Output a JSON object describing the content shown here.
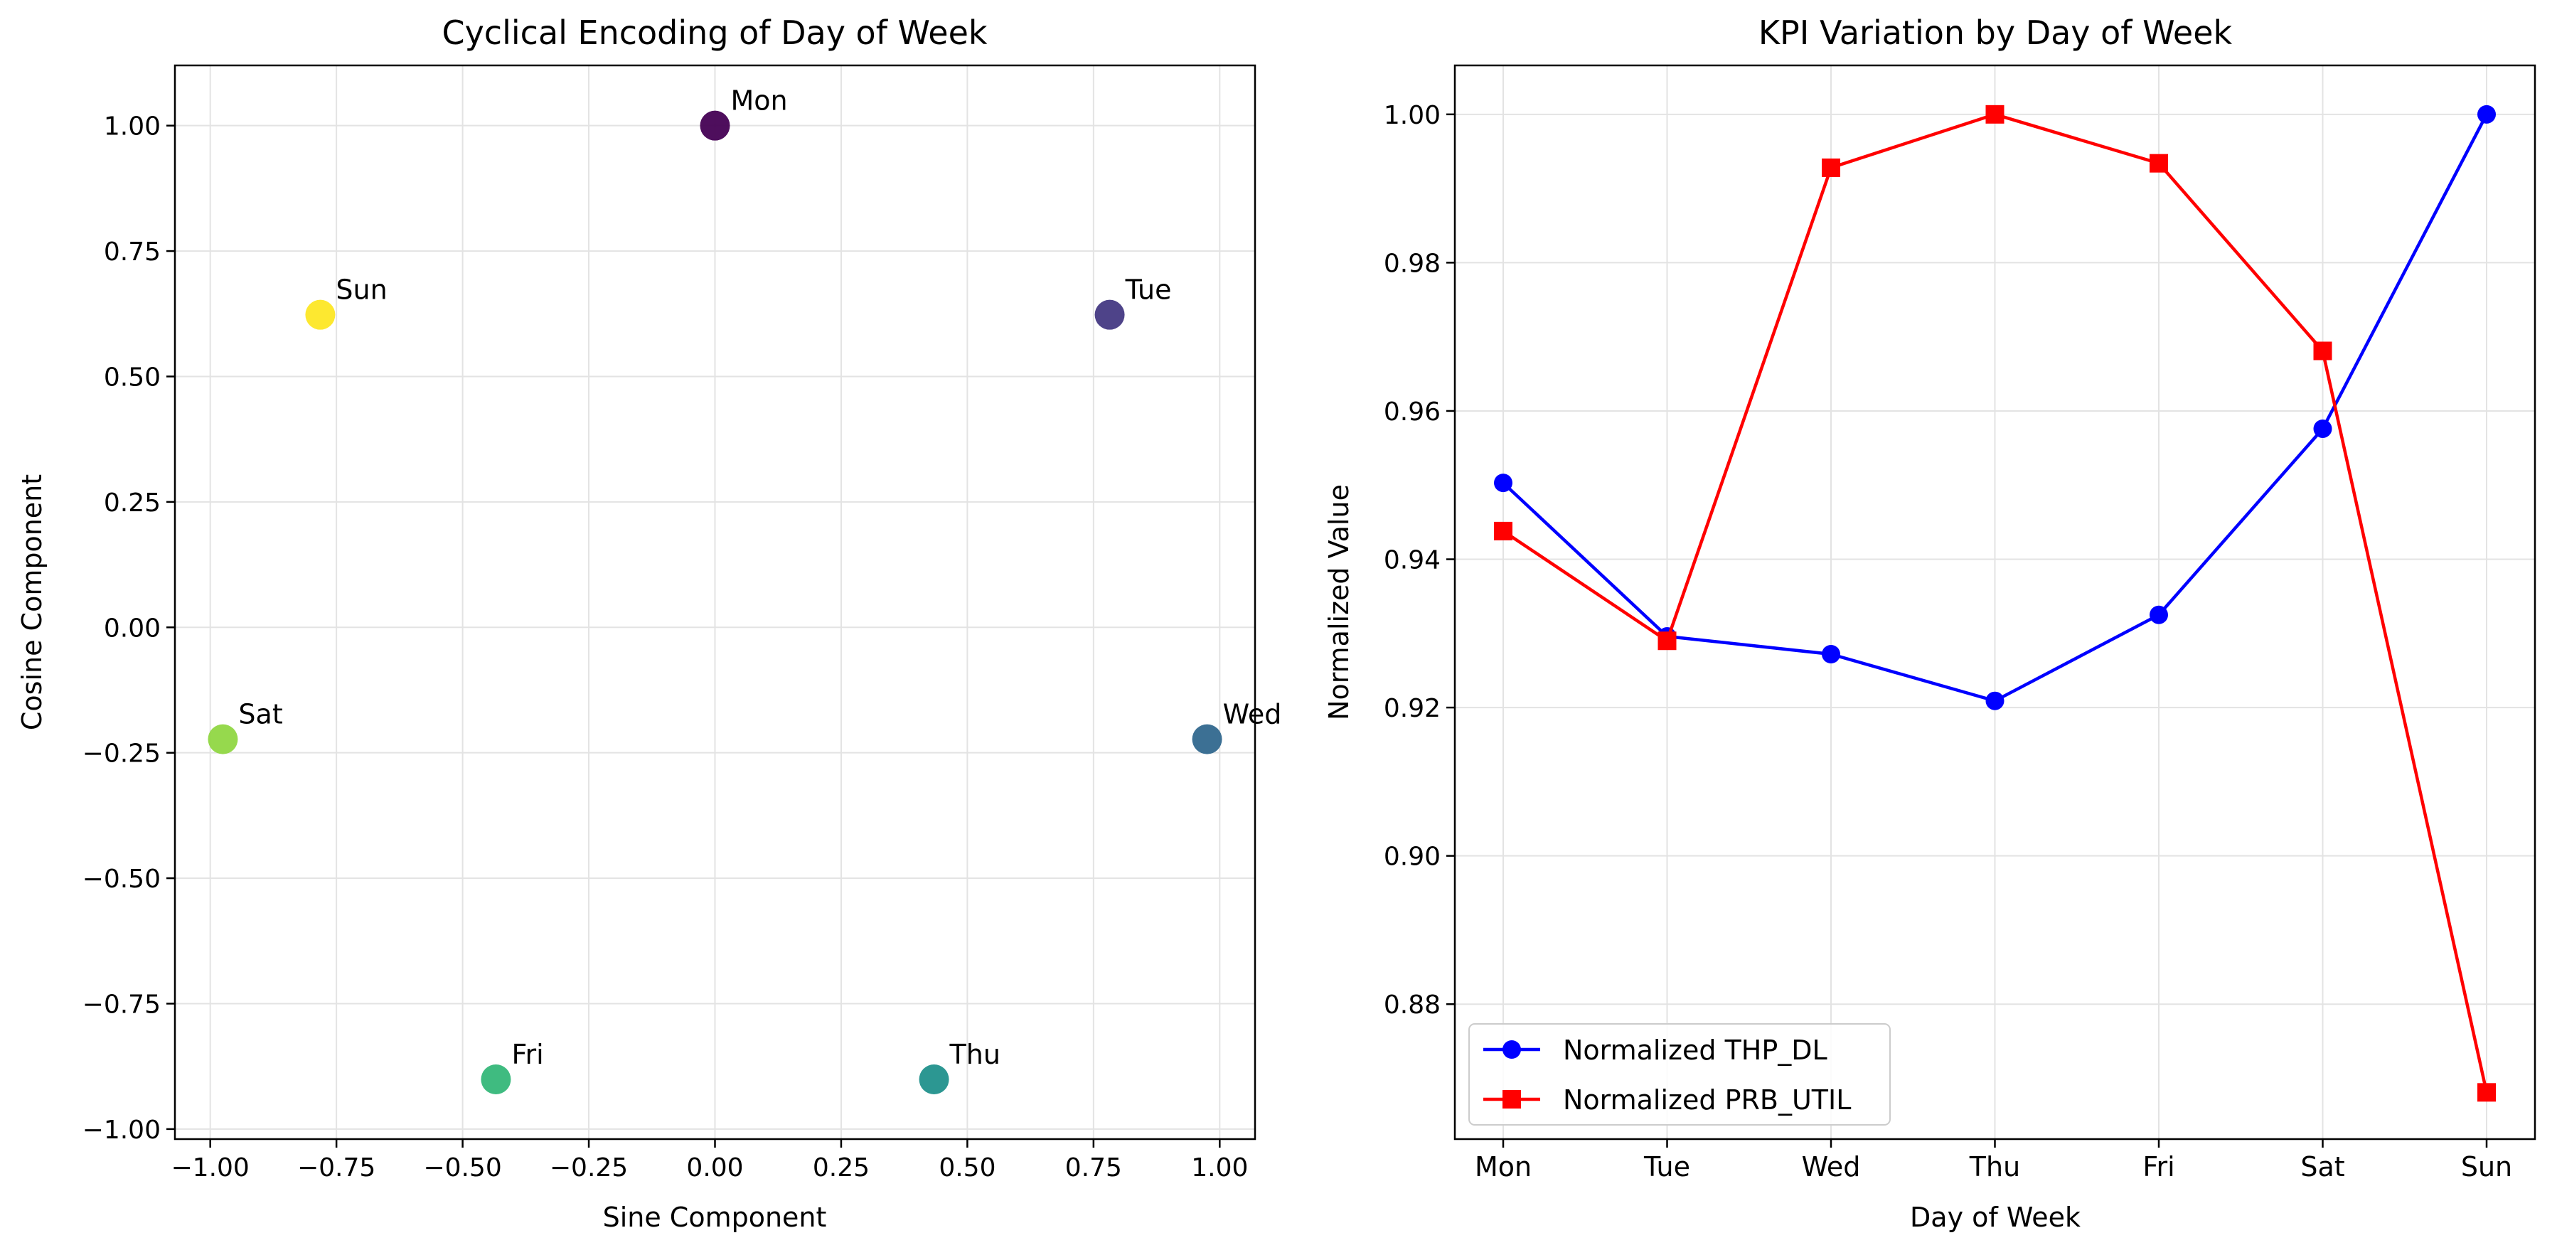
{
  "chart_data": [
    {
      "type": "scatter",
      "title": "Cyclical Encoding of Day of Week",
      "xlabel": "Sine Component",
      "ylabel": "Cosine Component",
      "xlim": [
        -1.07,
        1.07
      ],
      "ylim": [
        -1.02,
        1.12
      ],
      "xticks": [
        -1.0,
        -0.75,
        -0.5,
        -0.25,
        0.0,
        0.25,
        0.5,
        0.75,
        1.0
      ],
      "xtick_labels": [
        "−1.00",
        "−0.75",
        "−0.50",
        "−0.25",
        "0.00",
        "0.25",
        "0.50",
        "0.75",
        "1.00"
      ],
      "yticks": [
        -1.0,
        -0.75,
        -0.5,
        -0.25,
        0.0,
        0.25,
        0.5,
        0.75,
        1.0
      ],
      "ytick_labels": [
        "−1.00",
        "−0.75",
        "−0.50",
        "−0.25",
        "0.00",
        "0.25",
        "0.50",
        "0.75",
        "1.00"
      ],
      "grid": true,
      "points": [
        {
          "label": "Mon",
          "x": 0.0,
          "y": 1.0,
          "color": "#440154"
        },
        {
          "label": "Tue",
          "x": 0.782,
          "y": 0.623,
          "color": "#443983"
        },
        {
          "label": "Wed",
          "x": 0.975,
          "y": -0.223,
          "color": "#31688e"
        },
        {
          "label": "Thu",
          "x": 0.434,
          "y": -0.901,
          "color": "#21918c"
        },
        {
          "label": "Fri",
          "x": -0.434,
          "y": -0.901,
          "color": "#35b779"
        },
        {
          "label": "Sat",
          "x": -0.975,
          "y": -0.223,
          "color": "#90d743"
        },
        {
          "label": "Sun",
          "x": -0.782,
          "y": 0.623,
          "color": "#fde725"
        }
      ]
    },
    {
      "type": "line",
      "title": "KPI Variation by Day of Week",
      "xlabel": "Day of Week",
      "ylabel": "Normalized Value",
      "categories": [
        "Mon",
        "Tue",
        "Wed",
        "Thu",
        "Fri",
        "Sat",
        "Sun"
      ],
      "ylim": [
        0.8618,
        1.0066
      ],
      "yticks": [
        0.88,
        0.9,
        0.92,
        0.94,
        0.96,
        0.98,
        1.0
      ],
      "ytick_labels": [
        "0.88",
        "0.90",
        "0.92",
        "0.94",
        "0.96",
        "0.98",
        "1.00"
      ],
      "grid": true,
      "legend_position": "lower-left",
      "series": [
        {
          "name": "Normalized THP_DL",
          "color": "#0000ff",
          "marker": "circle",
          "values": [
            0.9503,
            0.9296,
            0.9272,
            0.9209,
            0.9325,
            0.9576,
            1.0
          ]
        },
        {
          "name": "Normalized PRB_UTIL",
          "color": "#ff0000",
          "marker": "square",
          "values": [
            0.9438,
            0.929,
            0.9928,
            1.0,
            0.9934,
            0.9681,
            0.8681
          ]
        }
      ]
    }
  ]
}
